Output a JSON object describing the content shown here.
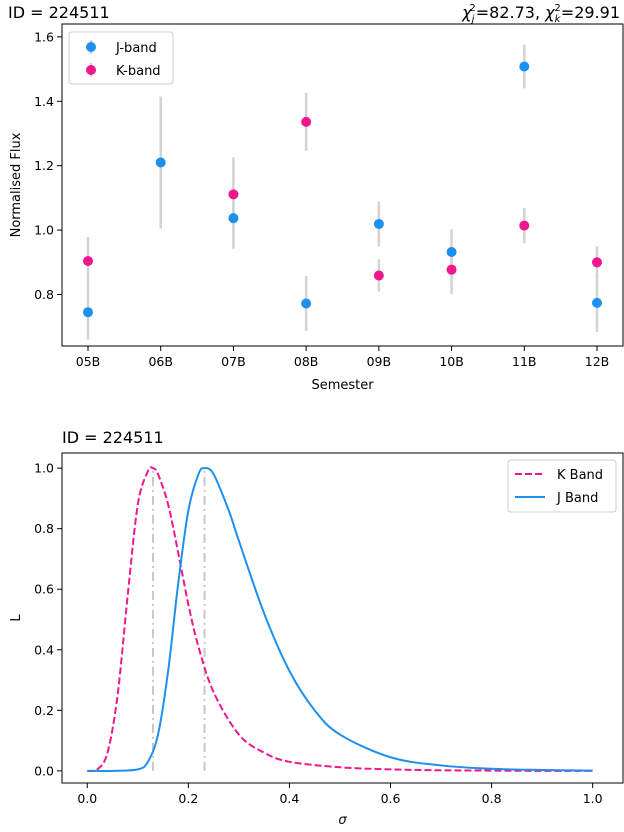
{
  "chart_data": [
    {
      "type": "scatter",
      "title_left": "ID = 224511",
      "title_right": "χj²=82.73, χk²=29.91",
      "xlabel": "Semester",
      "ylabel": "Normalised Flux",
      "categories": [
        "05B",
        "06B",
        "07B",
        "08B",
        "09B",
        "10B",
        "11B",
        "12B"
      ],
      "ylim": [
        0.64,
        1.64
      ],
      "yticks": [
        0.8,
        1.0,
        1.2,
        1.4,
        1.6
      ],
      "ytick_labels": [
        "0.8",
        "1.0",
        "1.2",
        "1.4",
        "1.6"
      ],
      "legend_position": "upper-left",
      "grid": false,
      "series": [
        {
          "name": "J-band",
          "color": "#1f8fee",
          "values": [
            0.745,
            1.21,
            1.037,
            0.772,
            1.019,
            0.932,
            1.508,
            0.774
          ],
          "errors": [
            0.085,
            0.205,
            0.095,
            0.085,
            0.07,
            0.07,
            0.068,
            0.09
          ]
        },
        {
          "name": "K-band",
          "color": "#f0168c",
          "values": [
            0.904,
            null,
            1.111,
            1.336,
            0.859,
            0.877,
            1.014,
            0.9
          ],
          "errors": [
            0.075,
            null,
            0.115,
            0.09,
            0.05,
            0.075,
            0.055,
            0.05
          ]
        }
      ]
    },
    {
      "type": "line",
      "title": "ID = 224511",
      "xlabel": "σ",
      "ylabel": "L",
      "xlim": [
        -0.05,
        1.06
      ],
      "ylim": [
        -0.04,
        1.05
      ],
      "xticks": [
        0.0,
        0.2,
        0.4,
        0.6,
        0.8,
        1.0
      ],
      "xtick_labels": [
        "0.0",
        "0.2",
        "0.4",
        "0.6",
        "0.8",
        "1.0"
      ],
      "yticks": [
        0.0,
        0.2,
        0.4,
        0.6,
        0.8,
        1.0
      ],
      "ytick_labels": [
        "0.0",
        "0.2",
        "0.4",
        "0.6",
        "0.8",
        "1.0"
      ],
      "legend_position": "upper-right",
      "grid": false,
      "series": [
        {
          "name": "K Band",
          "style": "dashed",
          "color": "#f0168c",
          "peak": 0.13,
          "x": [
            0.0,
            0.02,
            0.04,
            0.06,
            0.08,
            0.1,
            0.12,
            0.13,
            0.14,
            0.16,
            0.18,
            0.2,
            0.22,
            0.25,
            0.3,
            0.35,
            0.4,
            0.5,
            0.6,
            0.7,
            0.8,
            0.9,
            1.0
          ],
          "values": [
            0.0,
            0.005,
            0.06,
            0.25,
            0.58,
            0.88,
            0.99,
            1.0,
            0.98,
            0.88,
            0.72,
            0.55,
            0.41,
            0.26,
            0.12,
            0.06,
            0.03,
            0.012,
            0.005,
            0.002,
            0.001,
            0.0,
            0.0
          ]
        },
        {
          "name": "J Band",
          "style": "solid",
          "color": "#1f8fee",
          "peak": 0.232,
          "x": [
            0.0,
            0.05,
            0.1,
            0.12,
            0.14,
            0.16,
            0.18,
            0.2,
            0.22,
            0.232,
            0.25,
            0.28,
            0.3,
            0.35,
            0.4,
            0.45,
            0.5,
            0.6,
            0.7,
            0.8,
            0.9,
            1.0
          ],
          "values": [
            0.0,
            0.0,
            0.005,
            0.03,
            0.12,
            0.33,
            0.62,
            0.86,
            0.98,
            1.0,
            0.98,
            0.86,
            0.76,
            0.52,
            0.33,
            0.2,
            0.12,
            0.045,
            0.018,
            0.007,
            0.003,
            0.001
          ]
        }
      ]
    }
  ]
}
